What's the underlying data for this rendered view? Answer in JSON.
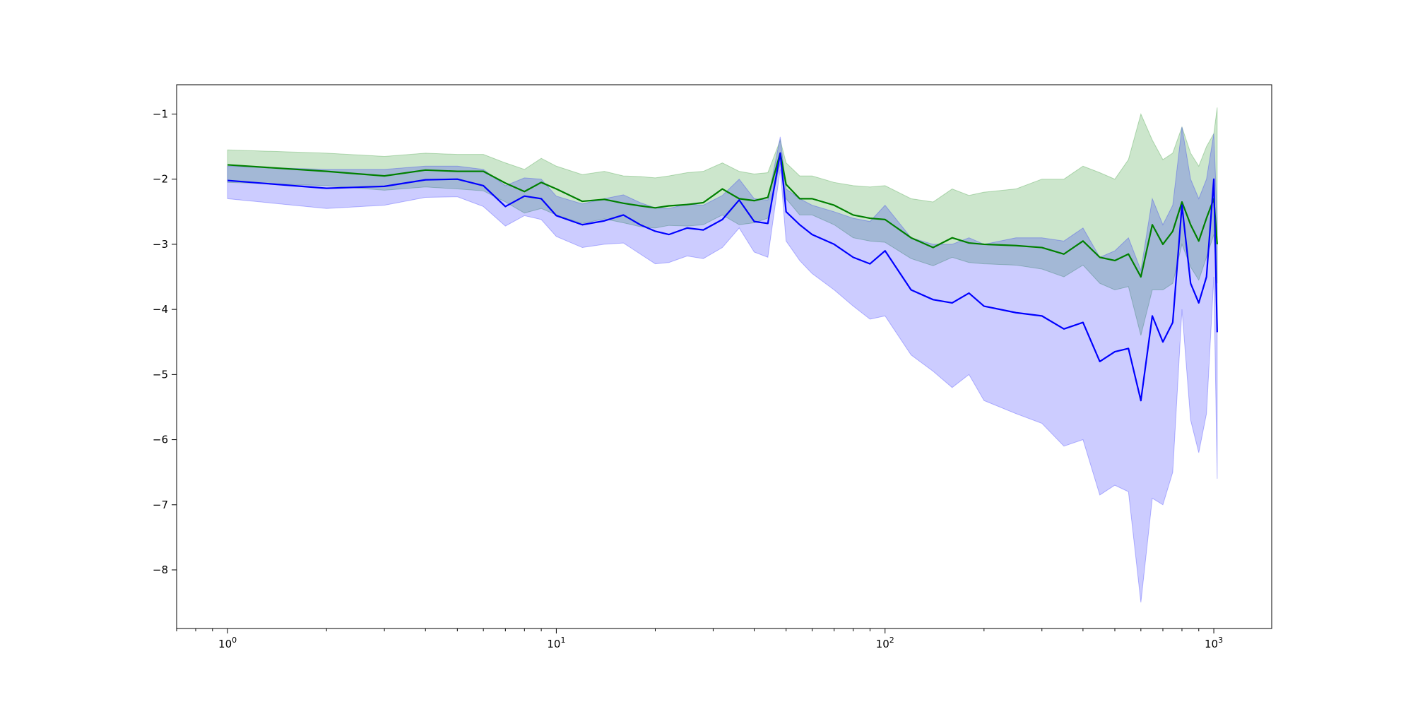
{
  "chart_data": {
    "type": "line",
    "title": "",
    "xlabel": "",
    "ylabel": "",
    "xscale": "log",
    "xlim": [
      0.7,
      1500
    ],
    "ylim": [
      -8.9,
      -0.55
    ],
    "grid": false,
    "legend": "none",
    "x_ticks": [
      {
        "value": 1,
        "base": "10",
        "exp": "0"
      },
      {
        "value": 10,
        "base": "10",
        "exp": "1"
      },
      {
        "value": 100,
        "base": "10",
        "exp": "2"
      },
      {
        "value": 1000,
        "base": "10",
        "exp": "3"
      }
    ],
    "y_ticks": [
      {
        "value": -1,
        "label": "−1"
      },
      {
        "value": -2,
        "label": "−2"
      },
      {
        "value": -3,
        "label": "−3"
      },
      {
        "value": -4,
        "label": "−4"
      },
      {
        "value": -5,
        "label": "−5"
      },
      {
        "value": -6,
        "label": "−6"
      },
      {
        "value": -7,
        "label": "−7"
      },
      {
        "value": -8,
        "label": "−8"
      }
    ],
    "series": [
      {
        "color": "#008000",
        "band_color": "#008000",
        "band_opacity": 0.2,
        "x": [
          1,
          2,
          3,
          4,
          5,
          6,
          7,
          8,
          9,
          10,
          12,
          14,
          16,
          18,
          20,
          22,
          25,
          28,
          32,
          36,
          40,
          44,
          48,
          50,
          55,
          60,
          70,
          80,
          90,
          100,
          120,
          140,
          160,
          180,
          200,
          250,
          300,
          350,
          400,
          450,
          500,
          550,
          600,
          650,
          700,
          750,
          800,
          850,
          900,
          950,
          1000,
          1024
        ],
        "mean": [
          -1.78,
          -1.88,
          -1.95,
          -1.86,
          -1.88,
          -1.88,
          -2.06,
          -2.19,
          -2.05,
          -2.15,
          -2.34,
          -2.31,
          -2.37,
          -2.41,
          -2.44,
          -2.41,
          -2.39,
          -2.36,
          -2.15,
          -2.3,
          -2.33,
          -2.28,
          -1.6,
          -2.08,
          -2.3,
          -2.3,
          -2.4,
          -2.55,
          -2.6,
          -2.62,
          -2.9,
          -3.05,
          -2.9,
          -2.98,
          -3.0,
          -3.02,
          -3.05,
          -3.15,
          -2.95,
          -3.2,
          -3.25,
          -3.15,
          -3.5,
          -2.7,
          -3.0,
          -2.8,
          -2.35,
          -2.7,
          -2.95,
          -2.6,
          -2.3,
          -3.0
        ],
        "lower": [
          -2.05,
          -2.1,
          -2.17,
          -2.12,
          -2.15,
          -2.18,
          -2.35,
          -2.52,
          -2.45,
          -2.55,
          -2.68,
          -2.61,
          -2.67,
          -2.73,
          -2.75,
          -2.71,
          -2.72,
          -2.7,
          -2.55,
          -2.7,
          -2.67,
          -2.6,
          -1.75,
          -2.3,
          -2.55,
          -2.55,
          -2.7,
          -2.9,
          -2.95,
          -2.97,
          -3.22,
          -3.33,
          -3.2,
          -3.28,
          -3.3,
          -3.32,
          -3.38,
          -3.5,
          -3.32,
          -3.6,
          -3.7,
          -3.65,
          -4.4,
          -3.7,
          -3.7,
          -3.6,
          -3.0,
          -3.35,
          -3.55,
          -3.2,
          -2.85,
          -3.6
        ],
        "upper": [
          -1.55,
          -1.6,
          -1.65,
          -1.6,
          -1.62,
          -1.62,
          -1.75,
          -1.85,
          -1.68,
          -1.8,
          -1.93,
          -1.88,
          -1.95,
          -1.96,
          -1.98,
          -1.95,
          -1.9,
          -1.88,
          -1.75,
          -1.88,
          -1.92,
          -1.9,
          -1.4,
          -1.75,
          -1.95,
          -1.95,
          -2.05,
          -2.1,
          -2.12,
          -2.1,
          -2.3,
          -2.35,
          -2.15,
          -2.25,
          -2.2,
          -2.15,
          -2.0,
          -2.0,
          -1.8,
          -1.9,
          -2.0,
          -1.7,
          -1.0,
          -1.4,
          -1.7,
          -1.6,
          -1.2,
          -1.6,
          -1.8,
          -1.5,
          -1.3,
          -0.9
        ]
      },
      {
        "color": "#0000ff",
        "band_color": "#0000ff",
        "band_opacity": 0.2,
        "x": [
          1,
          2,
          3,
          4,
          5,
          6,
          7,
          8,
          9,
          10,
          12,
          14,
          16,
          18,
          20,
          22,
          25,
          28,
          32,
          36,
          40,
          44,
          48,
          50,
          55,
          60,
          70,
          80,
          90,
          100,
          120,
          140,
          160,
          180,
          200,
          250,
          300,
          350,
          400,
          450,
          500,
          550,
          600,
          650,
          700,
          750,
          800,
          850,
          900,
          950,
          1000,
          1024
        ],
        "mean": [
          -2.02,
          -2.14,
          -2.11,
          -2.01,
          -2.0,
          -2.1,
          -2.42,
          -2.26,
          -2.3,
          -2.56,
          -2.7,
          -2.64,
          -2.55,
          -2.7,
          -2.8,
          -2.85,
          -2.75,
          -2.78,
          -2.62,
          -2.32,
          -2.65,
          -2.68,
          -1.6,
          -2.5,
          -2.7,
          -2.85,
          -3.0,
          -3.2,
          -3.3,
          -3.1,
          -3.7,
          -3.85,
          -3.9,
          -3.75,
          -3.95,
          -4.05,
          -4.1,
          -4.3,
          -4.2,
          -4.8,
          -4.65,
          -4.6,
          -5.4,
          -4.1,
          -4.5,
          -4.2,
          -2.4,
          -3.6,
          -3.9,
          -3.5,
          -2.0,
          -4.35
        ],
        "lower": [
          -2.3,
          -2.45,
          -2.4,
          -2.28,
          -2.27,
          -2.42,
          -2.72,
          -2.56,
          -2.62,
          -2.88,
          -3.05,
          -3.0,
          -2.98,
          -3.15,
          -3.3,
          -3.28,
          -3.18,
          -3.22,
          -3.05,
          -2.75,
          -3.12,
          -3.2,
          -1.85,
          -2.95,
          -3.25,
          -3.45,
          -3.7,
          -3.95,
          -4.15,
          -4.1,
          -4.7,
          -4.95,
          -5.2,
          -5.0,
          -5.4,
          -5.6,
          -5.75,
          -6.1,
          -6.0,
          -6.85,
          -6.7,
          -6.8,
          -8.5,
          -6.9,
          -7.0,
          -6.5,
          -4.0,
          -5.7,
          -6.2,
          -5.6,
          -3.5,
          -6.6
        ],
        "upper": [
          -1.8,
          -1.85,
          -1.85,
          -1.8,
          -1.8,
          -1.85,
          -2.1,
          -1.98,
          -2.0,
          -2.26,
          -2.38,
          -2.3,
          -2.24,
          -2.36,
          -2.44,
          -2.45,
          -2.38,
          -2.4,
          -2.25,
          -2.0,
          -2.3,
          -2.32,
          -1.35,
          -2.15,
          -2.3,
          -2.4,
          -2.5,
          -2.6,
          -2.65,
          -2.4,
          -2.9,
          -3.0,
          -3.0,
          -2.9,
          -3.0,
          -2.9,
          -2.9,
          -2.95,
          -2.75,
          -3.2,
          -3.1,
          -2.9,
          -3.4,
          -2.3,
          -2.7,
          -2.4,
          -1.2,
          -2.0,
          -2.3,
          -2.0,
          -1.3,
          -2.6
        ]
      }
    ]
  }
}
